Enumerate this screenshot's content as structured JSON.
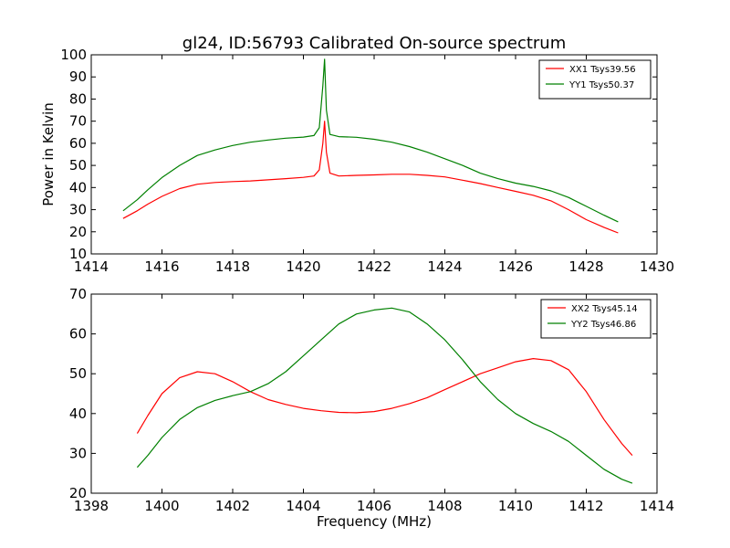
{
  "chart_data": [
    {
      "type": "line",
      "title": "gl24, ID:56793 Calibrated On-source spectrum",
      "xlabel": "",
      "ylabel": "Power in Kelvin",
      "xlim": [
        1414,
        1430
      ],
      "ylim": [
        10,
        100
      ],
      "xticks": [
        "1414",
        "1416",
        "1418",
        "1420",
        "1422",
        "1424",
        "1426",
        "1428",
        "1430"
      ],
      "yticks": [
        "10",
        "20",
        "30",
        "40",
        "50",
        "60",
        "70",
        "80",
        "90",
        "100"
      ],
      "legend_position": "top-right",
      "series": [
        {
          "name": "XX1 Tsys39.56",
          "color": "#ff0000",
          "x": [
            1414.9,
            1415.3,
            1415.6,
            1416.0,
            1416.5,
            1417.0,
            1417.5,
            1418.0,
            1418.5,
            1419.0,
            1419.5,
            1420.0,
            1420.3,
            1420.45,
            1420.55,
            1420.6,
            1420.65,
            1420.75,
            1421.0,
            1421.5,
            1422.0,
            1422.5,
            1423.0,
            1423.5,
            1424.0,
            1424.5,
            1425.0,
            1425.5,
            1426.0,
            1426.5,
            1427.0,
            1427.5,
            1428.0,
            1428.5,
            1428.9
          ],
          "values": [
            26,
            29.5,
            32.5,
            36,
            39.5,
            41.5,
            42.3,
            42.7,
            43,
            43.5,
            44,
            44.6,
            45.2,
            48,
            60,
            70,
            56,
            46.5,
            45.2,
            45.5,
            45.7,
            46,
            46,
            45.5,
            44.8,
            43.3,
            41.8,
            40,
            38.3,
            36.5,
            34,
            30,
            25.5,
            22,
            19.5
          ]
        },
        {
          "name": "YY1 Tsys50.37",
          "color": "#008000",
          "x": [
            1414.9,
            1415.3,
            1415.6,
            1416.0,
            1416.5,
            1417.0,
            1417.5,
            1418.0,
            1418.5,
            1419.0,
            1419.5,
            1420.0,
            1420.3,
            1420.45,
            1420.55,
            1420.6,
            1420.65,
            1420.75,
            1421.0,
            1421.5,
            1422.0,
            1422.5,
            1423.0,
            1423.5,
            1424.0,
            1424.5,
            1425.0,
            1425.5,
            1426.0,
            1426.5,
            1427.0,
            1427.5,
            1428.0,
            1428.5,
            1428.9
          ],
          "values": [
            29.5,
            34.5,
            39,
            44.5,
            50,
            54.5,
            57,
            59,
            60.5,
            61.5,
            62.3,
            62.8,
            63.5,
            67,
            86,
            98,
            75,
            64,
            63,
            62.7,
            61.8,
            60.5,
            58.5,
            56,
            53,
            50,
            46.5,
            44,
            42,
            40.5,
            38.5,
            35.5,
            31.5,
            27.5,
            24.5
          ]
        }
      ]
    },
    {
      "type": "line",
      "title": "",
      "xlabel": "Frequency (MHz)",
      "ylabel": "",
      "xlim": [
        1398,
        1414
      ],
      "ylim": [
        20,
        70
      ],
      "xticks": [
        "1398",
        "1400",
        "1402",
        "1404",
        "1406",
        "1408",
        "1410",
        "1412",
        "1414"
      ],
      "yticks": [
        "20",
        "30",
        "40",
        "50",
        "60",
        "70"
      ],
      "legend_position": "top-right",
      "series": [
        {
          "name": "XX2 Tsys45.14",
          "color": "#ff0000",
          "x": [
            1399.3,
            1399.6,
            1400.0,
            1400.5,
            1401.0,
            1401.5,
            1402.0,
            1402.5,
            1403.0,
            1403.5,
            1404.0,
            1404.5,
            1405.0,
            1405.5,
            1406.0,
            1406.5,
            1407.0,
            1407.5,
            1408.0,
            1408.5,
            1409.0,
            1409.5,
            1410.0,
            1410.5,
            1411.0,
            1411.5,
            1412.0,
            1412.5,
            1413.0,
            1413.3
          ],
          "values": [
            35,
            39.5,
            45,
            49,
            50.5,
            50,
            48,
            45.5,
            43.5,
            42.3,
            41.3,
            40.7,
            40.3,
            40.2,
            40.5,
            41.3,
            42.5,
            44,
            46,
            48,
            50,
            51.5,
            53,
            53.8,
            53.3,
            51,
            45.5,
            38.5,
            32.5,
            29.5
          ]
        },
        {
          "name": "YY2 Tsys46.86",
          "color": "#008000",
          "x": [
            1399.3,
            1399.6,
            1400.0,
            1400.5,
            1401.0,
            1401.5,
            1402.0,
            1402.5,
            1403.0,
            1403.5,
            1404.0,
            1404.5,
            1405.0,
            1405.5,
            1406.0,
            1406.5,
            1407.0,
            1407.5,
            1408.0,
            1408.5,
            1409.0,
            1409.5,
            1410.0,
            1410.5,
            1411.0,
            1411.5,
            1412.0,
            1412.5,
            1413.0,
            1413.3
          ],
          "values": [
            26.5,
            29.5,
            34,
            38.5,
            41.5,
            43.3,
            44.5,
            45.5,
            47.5,
            50.5,
            54.5,
            58.5,
            62.5,
            65,
            66,
            66.5,
            65.5,
            62.5,
            58.5,
            53.5,
            48,
            43.5,
            40,
            37.5,
            35.5,
            33,
            29.5,
            26,
            23.5,
            22.5
          ]
        }
      ]
    }
  ]
}
